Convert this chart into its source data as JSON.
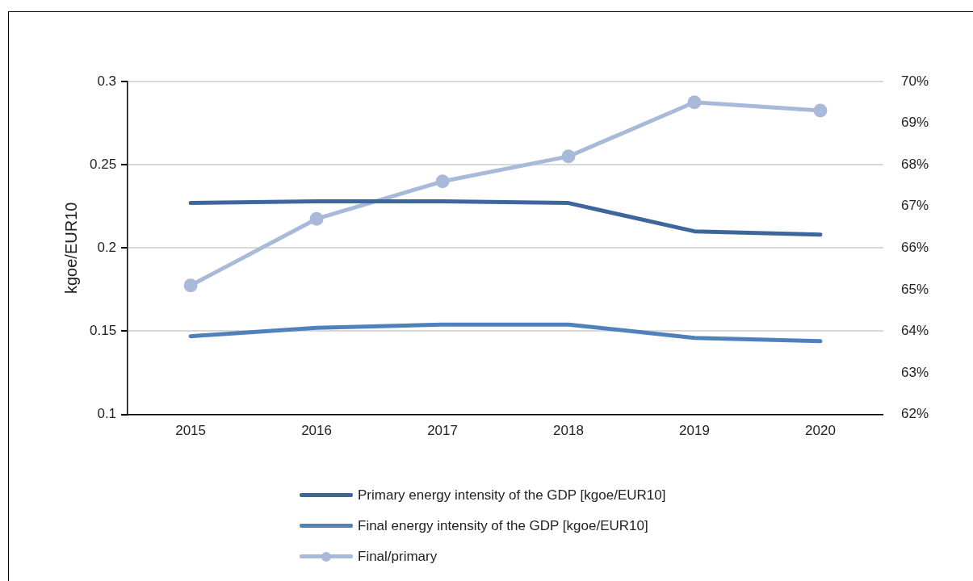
{
  "chart_data": {
    "type": "line",
    "categories": [
      "2015",
      "2016",
      "2017",
      "2018",
      "2019",
      "2020"
    ],
    "series": [
      {
        "name": "Primary energy intensity of the GDP [kgoe/EUR10]",
        "color": "#3d679c",
        "values": [
          0.227,
          0.228,
          0.228,
          0.227,
          0.21,
          0.208
        ],
        "marker": "none"
      },
      {
        "name": "Final energy intensity of the GDP [kgoe/EUR10]",
        "color": "#4f81bd",
        "values": [
          0.147,
          0.152,
          0.154,
          0.154,
          0.146,
          0.144
        ],
        "marker": "none"
      },
      {
        "name": "Final/primary",
        "color": "#a8b9da",
        "values": [
          65.1,
          66.7,
          67.6,
          68.2,
          69.5,
          69.3
        ],
        "axis": "y2",
        "marker": "circle"
      }
    ],
    "ylabel": "kgoe/EUR10",
    "ylim": [
      0.1,
      0.3
    ],
    "yticks": [
      0.1,
      0.15,
      0.2,
      0.25,
      0.3
    ],
    "y2lim": [
      62,
      70
    ],
    "y2ticks": [
      {
        "value": 62,
        "label": "62%"
      },
      {
        "value": 63,
        "label": "63%"
      },
      {
        "value": 64,
        "label": "64%"
      },
      {
        "value": 65,
        "label": "65%"
      },
      {
        "value": 66,
        "label": "66%"
      },
      {
        "value": 67,
        "label": "67%"
      },
      {
        "value": 68,
        "label": "68%"
      },
      {
        "value": 69,
        "label": "69%"
      },
      {
        "value": 70,
        "label": "70%"
      }
    ],
    "grid": "y",
    "legend": "bottom",
    "line_style": "solid"
  }
}
